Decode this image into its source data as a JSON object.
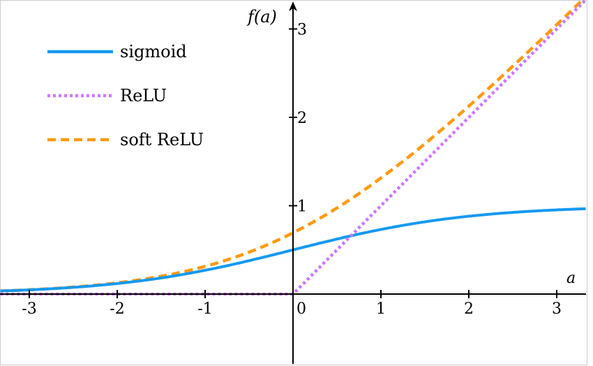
{
  "chart_data": {
    "type": "line",
    "title": "",
    "xlabel": "a",
    "ylabel": "f(a)",
    "xlim": [
      -3.33,
      3.33
    ],
    "ylim": [
      -0.81,
      3.33
    ],
    "grid": false,
    "legend_placement": "top-left",
    "x_ticks": [
      -3,
      -2,
      -1,
      0,
      1,
      2,
      3
    ],
    "x_tick_labels": [
      "-3",
      "-2",
      "-1",
      "0",
      "1",
      "2",
      "3"
    ],
    "y_ticks": [
      1,
      2,
      3
    ],
    "y_tick_labels": [
      "1",
      "2",
      "3"
    ],
    "series": [
      {
        "name": "sigmoid",
        "function": "1/(1+exp(-a))",
        "color": "#1499f0",
        "style": "solid"
      },
      {
        "name": "ReLU",
        "function": "max(0,a)",
        "color": "#cc77ff",
        "style": "dotted"
      },
      {
        "name": "soft ReLU",
        "function": "log(1+exp(a))",
        "color": "#ff9a10",
        "style": "dashed"
      }
    ]
  }
}
